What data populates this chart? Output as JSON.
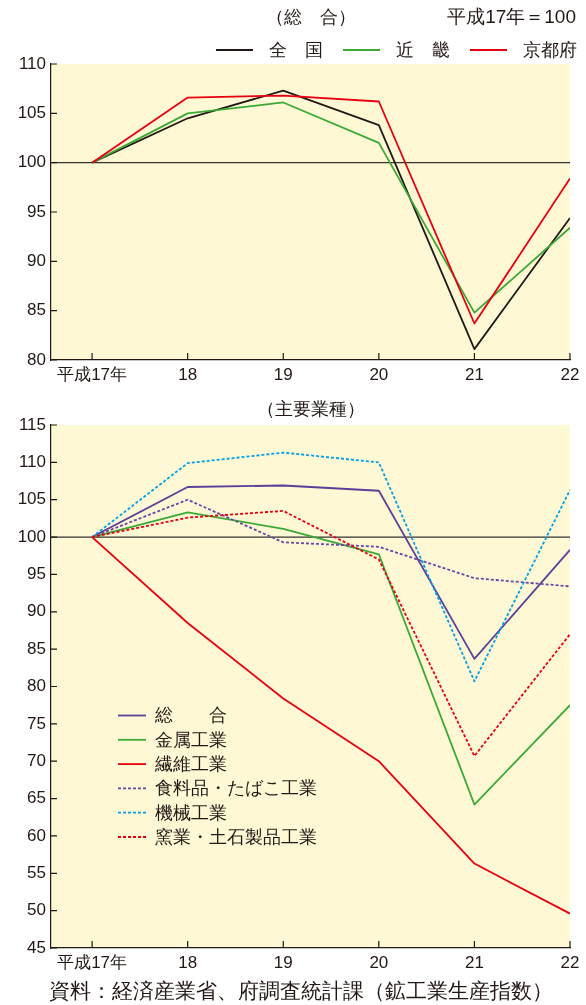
{
  "chart_data": [
    {
      "type": "line",
      "title": "（総　合）",
      "subtitle": "平成17年＝100",
      "x": [
        17,
        18,
        19,
        20,
        21,
        22
      ],
      "xlim": [
        16.57,
        22
      ],
      "xticks": [
        {
          "value": 17,
          "label": "平成17年"
        },
        18,
        19,
        20,
        21,
        22
      ],
      "ylim": [
        80,
        110
      ],
      "yticks": [
        80,
        85,
        90,
        95,
        100,
        105,
        110
      ],
      "series": [
        {
          "name": "全　国",
          "color": "#231815",
          "values": [
            100,
            104.5,
            107.3,
            103.8,
            81.1,
            94.4
          ]
        },
        {
          "name": "近　畿",
          "color": "#3aaa35",
          "values": [
            100,
            105.0,
            106.1,
            102.0,
            84.8,
            93.4
          ]
        },
        {
          "name": "京都府",
          "color": "#e60012",
          "values": [
            100,
            106.6,
            106.8,
            106.2,
            83.7,
            98.4
          ]
        }
      ],
      "ref_lines": [
        {
          "axis": "y",
          "value": 100,
          "color": "#333333"
        }
      ],
      "legend": "top right"
    },
    {
      "type": "line",
      "title": "（主要業種）",
      "x": [
        17,
        18,
        19,
        20,
        21,
        22
      ],
      "xlim": [
        16.57,
        22
      ],
      "xticks": [
        {
          "value": 17,
          "label": "平成17年"
        },
        18,
        19,
        20,
        21,
        22
      ],
      "ylim": [
        45,
        115
      ],
      "yticks": [
        45,
        50,
        55,
        60,
        65,
        70,
        75,
        80,
        85,
        90,
        95,
        100,
        105,
        110,
        115
      ],
      "series": [
        {
          "name": "総　　合",
          "color": "#5b3f98",
          "values": [
            100,
            106.7,
            106.9,
            106.2,
            83.7,
            98.3
          ]
        },
        {
          "name": "金属工業",
          "color": "#3aaa35",
          "values": [
            100,
            103.3,
            101.1,
            97.7,
            64.2,
            77.5
          ]
        },
        {
          "name": "繊維工業",
          "color": "#e60012",
          "values": [
            100,
            88.5,
            78.4,
            70.0,
            56.3,
            49.6
          ]
        },
        {
          "name": "食料品・たばこ工業",
          "color": "#6b45a6",
          "line_style": "dashed",
          "values": [
            100,
            105.0,
            99.3,
            98.7,
            94.5,
            93.4
          ]
        },
        {
          "name": "機械工業",
          "color": "#00a0e9",
          "line_style": "dashed",
          "values": [
            100,
            109.9,
            111.3,
            110.0,
            80.7,
            106.3
          ]
        },
        {
          "name": "窯業・土石製品工業",
          "color": "#e60012",
          "line_style": "dashed",
          "values": [
            100,
            102.6,
            103.5,
            97.0,
            70.7,
            87.0
          ]
        }
      ],
      "ref_lines": [
        {
          "axis": "y",
          "value": 100,
          "color": "#333333"
        }
      ],
      "legend": "bottom left",
      "annotations": [
        "資料：経済産業省、府調査統計課（鉱工業生産指数）"
      ]
    }
  ]
}
